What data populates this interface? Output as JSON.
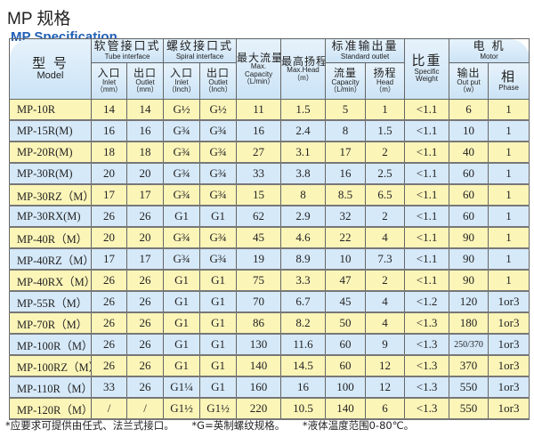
{
  "title": {
    "cn": "MP 规格",
    "en": "MP Specification"
  },
  "header": {
    "model": {
      "cn": "型 号",
      "en": "Model"
    },
    "tube": {
      "cn": "软管接口式",
      "en": "Tube interface",
      "inlet": {
        "cn": "入口",
        "en": "Inlet",
        "unit": "（mm）"
      },
      "outlet": {
        "cn": "出口",
        "en": "Outlet",
        "unit": "（mm）"
      }
    },
    "spiral": {
      "cn": "螺纹接口式",
      "en": "Spiral interface",
      "inlet": {
        "cn": "入口",
        "en": "Inlet",
        "unit": "（Inch）"
      },
      "outlet": {
        "cn": "出口",
        "en": "Outlet",
        "unit": "（Inch）"
      }
    },
    "max_capacity": {
      "cn": "最大流量",
      "en": "Max. Capacity",
      "unit": "（L/min）"
    },
    "max_head": {
      "cn": "最高扬程",
      "en": "Max.Head",
      "unit": "（m）"
    },
    "standard": {
      "cn": "标准输出量",
      "en": "Standard outlet",
      "capacity": {
        "cn": "流量",
        "en": "Capacity",
        "unit": "（L/min）"
      },
      "head": {
        "cn": "扬程",
        "en": "Head",
        "unit": "（m）"
      }
    },
    "weight": {
      "cn": "比重",
      "en": "Specific Weight"
    },
    "motor": {
      "cn": "电 机",
      "en": "Motor",
      "output": {
        "cn": "输出",
        "en": "Out put",
        "unit": "（w）"
      },
      "phase": {
        "cn": "相",
        "en": "Phase"
      }
    }
  },
  "rows": [
    [
      "MP-10R",
      "14",
      "14",
      "G½",
      "G½",
      "11",
      "1.5",
      "5",
      "1",
      "<1.1",
      "6",
      "1"
    ],
    [
      "MP-15R(M)",
      "16",
      "16",
      "G¾",
      "G¾",
      "16",
      "2.4",
      "8",
      "1.5",
      "<1.1",
      "10",
      "1"
    ],
    [
      "MP-20R(M)",
      "18",
      "18",
      "G¾",
      "G¾",
      "27",
      "3.1",
      "17",
      "2",
      "<1.1",
      "40",
      "1"
    ],
    [
      "MP-30R(M)",
      "20",
      "20",
      "G¾",
      "G¾",
      "33",
      "3.8",
      "16",
      "2.5",
      "<1.1",
      "60",
      "1"
    ],
    [
      "MP-30RZ（M）",
      "17",
      "17",
      "G¾",
      "G¾",
      "15",
      "8",
      "8.5",
      "6.5",
      "<1.1",
      "60",
      "1"
    ],
    [
      "MP-30RX(M)",
      "26",
      "26",
      "G1",
      "G1",
      "62",
      "2.9",
      "32",
      "2",
      "<1.1",
      "60",
      "1"
    ],
    [
      "MP-40R（M）",
      "20",
      "20",
      "G¾",
      "G¾",
      "45",
      "4.6",
      "22",
      "4",
      "<1.1",
      "90",
      "1"
    ],
    [
      "MP-40RZ（M）",
      "17",
      "17",
      "G¾",
      "G¾",
      "19",
      "8.9",
      "10",
      "7.3",
      "<1.1",
      "90",
      "1"
    ],
    [
      "MP-40RX（M）",
      "26",
      "26",
      "G1",
      "G1",
      "75",
      "3.3",
      "47",
      "2",
      "<1.1",
      "90",
      "1"
    ],
    [
      "MP-55R（M）",
      "26",
      "26",
      "G1",
      "G1",
      "70",
      "6.7",
      "45",
      "4",
      "<1.2",
      "120",
      "1or3"
    ],
    [
      "MP-70R（M）",
      "26",
      "26",
      "G1",
      "G1",
      "86",
      "8.2",
      "50",
      "4",
      "<1.3",
      "180",
      "1or3"
    ],
    [
      "MP-100R（M）",
      "26",
      "26",
      "G1",
      "G1",
      "130",
      "11.6",
      "60",
      "9",
      "<1.3",
      "250/370",
      "1or3"
    ],
    [
      "MP-100RZ（M）",
      "26",
      "26",
      "G1",
      "G1",
      "140",
      "14.5",
      "60",
      "12",
      "<1.3",
      "370",
      "1or3"
    ],
    [
      "MP-110R（M）",
      "33",
      "26",
      "G1¼",
      "G1",
      "160",
      "16",
      "100",
      "12",
      "<1.3",
      "550",
      "1or3"
    ],
    [
      "MP-120R（M）",
      "/",
      "/",
      "G1½",
      "G1½",
      "220",
      "10.5",
      "140",
      "6",
      "<1.3",
      "550",
      "1or3"
    ]
  ],
  "notes": [
    "*应要求可提供由任式、法兰式接口。",
    "*G=英制螺纹规格。",
    "*液体温度范围0-80℃。"
  ],
  "colors": {
    "row_yellow": "#fcf5b8",
    "row_blue": "#d6e9f9",
    "header_blue": "#cbe3f6",
    "title_blue": "#1f5fb5"
  }
}
